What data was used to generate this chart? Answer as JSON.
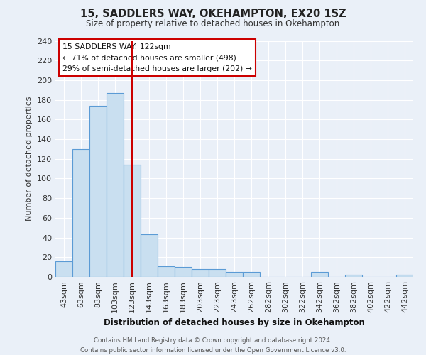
{
  "title": "15, SADDLERS WAY, OKEHAMPTON, EX20 1SZ",
  "subtitle": "Size of property relative to detached houses in Okehampton",
  "xlabel": "Distribution of detached houses by size in Okehampton",
  "ylabel": "Number of detached properties",
  "footer_line1": "Contains HM Land Registry data © Crown copyright and database right 2024.",
  "footer_line2": "Contains public sector information licensed under the Open Government Licence v3.0.",
  "bar_labels": [
    "43sqm",
    "63sqm",
    "83sqm",
    "103sqm",
    "123sqm",
    "143sqm",
    "163sqm",
    "183sqm",
    "203sqm",
    "223sqm",
    "243sqm",
    "262sqm",
    "282sqm",
    "302sqm",
    "322sqm",
    "342sqm",
    "362sqm",
    "382sqm",
    "402sqm",
    "422sqm",
    "442sqm"
  ],
  "bar_values": [
    16,
    130,
    174,
    187,
    114,
    43,
    11,
    10,
    8,
    8,
    5,
    5,
    0,
    0,
    0,
    5,
    0,
    2,
    0,
    0,
    2
  ],
  "bar_color": "#c9dff0",
  "bar_edge_color": "#5b9bd5",
  "bg_color": "#eaf0f8",
  "grid_color": "#ffffff",
  "vline_x": 4.0,
  "vline_color": "#cc0000",
  "annotation_title": "15 SADDLERS WAY: 122sqm",
  "annotation_line1": "← 71% of detached houses are smaller (498)",
  "annotation_line2": "29% of semi-detached houses are larger (202) →",
  "annotation_box_color": "#ffffff",
  "annotation_box_edge": "#cc0000",
  "ylim": [
    0,
    240
  ],
  "yticks": [
    0,
    20,
    40,
    60,
    80,
    100,
    120,
    140,
    160,
    180,
    200,
    220,
    240
  ]
}
